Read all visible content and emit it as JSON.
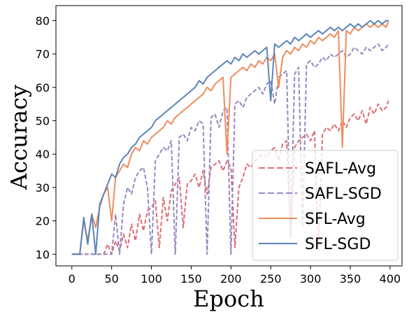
{
  "chart_data": {
    "type": "line",
    "xlabel": "Epoch",
    "ylabel": "Accuracy",
    "xlim": [
      -20,
      415
    ],
    "ylim": [
      6.5,
      84.5
    ],
    "xticks": [
      0,
      50,
      100,
      150,
      200,
      250,
      300,
      350,
      400
    ],
    "yticks": [
      10,
      20,
      30,
      40,
      50,
      60,
      70,
      80
    ],
    "grid": false,
    "legend_position": "lower-right",
    "series": [
      {
        "name": "SAFL-Avg",
        "color": "#e06b73",
        "dash": "dashed",
        "x": [
          0,
          20,
          40,
          45,
          50,
          55,
          60,
          65,
          70,
          75,
          80,
          85,
          90,
          95,
          100,
          105,
          110,
          115,
          120,
          125,
          130,
          135,
          140,
          145,
          150,
          155,
          160,
          165,
          170,
          175,
          180,
          185,
          190,
          195,
          200,
          205,
          210,
          215,
          220,
          225,
          230,
          235,
          240,
          245,
          250,
          255,
          260,
          265,
          270,
          275,
          280,
          285,
          290,
          295,
          300,
          305,
          310,
          315,
          320,
          325,
          330,
          335,
          340,
          345,
          350,
          355,
          360,
          365,
          370,
          375,
          380,
          385,
          390,
          395,
          398
        ],
        "y": [
          10,
          10,
          10,
          13,
          10,
          14,
          11,
          16,
          12,
          19,
          14,
          22,
          17,
          23,
          24,
          26,
          12,
          27,
          20,
          29,
          31,
          33,
          18,
          31,
          32,
          34,
          30,
          35,
          28,
          36,
          37,
          38,
          35,
          38,
          36,
          12,
          30,
          33,
          37,
          36,
          38,
          39,
          40,
          39,
          41,
          42,
          38,
          43,
          44,
          15,
          42,
          44,
          45,
          46,
          44,
          47,
          11,
          46,
          48,
          47,
          49,
          47,
          50,
          48,
          51,
          52,
          50,
          53,
          49,
          54,
          52,
          55,
          53,
          54,
          56
        ]
      },
      {
        "name": "SAFL-SGD",
        "color": "#9488c1",
        "dash": "dashed",
        "x": [
          0,
          20,
          40,
          50,
          55,
          60,
          65,
          70,
          75,
          80,
          85,
          90,
          95,
          100,
          105,
          110,
          115,
          120,
          125,
          130,
          135,
          140,
          145,
          150,
          155,
          160,
          165,
          170,
          175,
          180,
          185,
          190,
          195,
          200,
          205,
          210,
          215,
          220,
          225,
          230,
          235,
          240,
          245,
          250,
          255,
          260,
          265,
          270,
          275,
          280,
          285,
          290,
          295,
          300,
          305,
          310,
          315,
          320,
          325,
          330,
          335,
          340,
          345,
          350,
          355,
          360,
          365,
          370,
          375,
          380,
          385,
          390,
          395,
          398
        ],
        "y": [
          10,
          10,
          10,
          10,
          22,
          10,
          25,
          30,
          28,
          33,
          35,
          36,
          30,
          10,
          38,
          40,
          42,
          41,
          44,
          10,
          45,
          46,
          44,
          48,
          47,
          50,
          49,
          10,
          51,
          52,
          48,
          53,
          54,
          10,
          55,
          56,
          54,
          57,
          58,
          59,
          60,
          58,
          61,
          62,
          55,
          63,
          64,
          65,
          15,
          64,
          66,
          18,
          67,
          68,
          66,
          67,
          69,
          68,
          70,
          69,
          70,
          71,
          69,
          70,
          72,
          71,
          70,
          72,
          71,
          72,
          73,
          71,
          72,
          73
        ]
      },
      {
        "name": "SFL-Avg",
        "color": "#f08c5c",
        "dash": "solid",
        "x": [
          0,
          10,
          15,
          20,
          25,
          30,
          35,
          40,
          45,
          50,
          55,
          60,
          65,
          70,
          75,
          80,
          85,
          90,
          95,
          100,
          105,
          110,
          115,
          120,
          125,
          130,
          135,
          140,
          145,
          150,
          155,
          160,
          165,
          170,
          175,
          180,
          185,
          190,
          195,
          200,
          205,
          210,
          215,
          220,
          225,
          230,
          235,
          240,
          245,
          250,
          255,
          260,
          265,
          270,
          275,
          280,
          285,
          290,
          295,
          300,
          305,
          310,
          315,
          320,
          325,
          330,
          335,
          340,
          345,
          350,
          355,
          360,
          365,
          370,
          375,
          380,
          385,
          390,
          395,
          398
        ],
        "y": [
          10,
          10,
          20,
          14,
          22,
          18,
          24,
          28,
          30,
          20,
          33,
          35,
          37,
          36,
          40,
          42,
          41,
          44,
          43,
          45,
          46,
          47,
          48,
          50,
          49,
          51,
          52,
          53,
          54,
          55,
          56,
          57,
          58,
          60,
          59,
          61,
          62,
          63,
          40,
          63,
          64,
          65,
          66,
          65,
          67,
          66,
          68,
          67,
          69,
          68,
          70,
          60,
          69,
          71,
          70,
          72,
          71,
          73,
          72,
          74,
          73,
          75,
          74,
          75,
          76,
          75,
          77,
          42,
          77,
          76,
          78,
          77,
          78,
          79,
          78,
          79,
          78,
          79,
          78,
          80
        ]
      },
      {
        "name": "SFL-SGD",
        "color": "#5b84bb",
        "dash": "solid",
        "x": [
          0,
          10,
          15,
          20,
          25,
          30,
          35,
          40,
          45,
          50,
          55,
          60,
          65,
          70,
          75,
          80,
          85,
          90,
          95,
          100,
          105,
          110,
          115,
          120,
          125,
          130,
          135,
          140,
          145,
          150,
          155,
          160,
          165,
          170,
          175,
          180,
          185,
          190,
          195,
          200,
          205,
          210,
          215,
          220,
          225,
          230,
          235,
          240,
          245,
          250,
          255,
          260,
          265,
          270,
          275,
          280,
          285,
          290,
          295,
          300,
          305,
          310,
          315,
          320,
          325,
          330,
          335,
          340,
          345,
          350,
          355,
          360,
          365,
          370,
          375,
          380,
          385,
          390,
          395,
          398
        ],
        "y": [
          10,
          10,
          21,
          13,
          22,
          10,
          25,
          28,
          31,
          34,
          33,
          37,
          39,
          40,
          42,
          43,
          45,
          46,
          47,
          48,
          50,
          51,
          52,
          53,
          54,
          55,
          56,
          57,
          58,
          59,
          60,
          62,
          61,
          63,
          64,
          65,
          66,
          67,
          68,
          67,
          69,
          68,
          70,
          69,
          70,
          71,
          70,
          71,
          72,
          56,
          73,
          72,
          73,
          74,
          73,
          75,
          74,
          75,
          76,
          75,
          76,
          77,
          76,
          77,
          78,
          77,
          78,
          77,
          78,
          79,
          78,
          79,
          78,
          79,
          80,
          79,
          80,
          79,
          80,
          80
        ]
      }
    ]
  }
}
